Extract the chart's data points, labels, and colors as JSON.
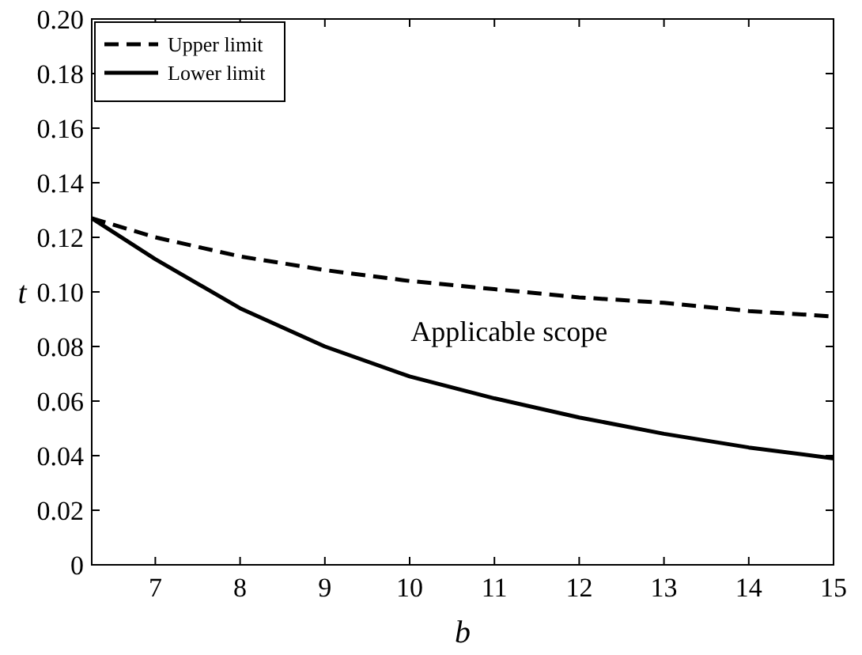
{
  "chart_data": {
    "type": "line",
    "xlabel": "b",
    "ylabel": "t",
    "xlim": [
      6.25,
      15
    ],
    "xticks": [
      7,
      8,
      9,
      10,
      11,
      12,
      13,
      14,
      15
    ],
    "ylim": [
      0,
      0.2
    ],
    "yticks": [
      {
        "value": 0,
        "label": "0"
      },
      {
        "value": 0.02,
        "label": "0.02"
      },
      {
        "value": 0.04,
        "label": "0.04"
      },
      {
        "value": 0.06,
        "label": "0.06"
      },
      {
        "value": 0.08,
        "label": "0.08"
      },
      {
        "value": 0.1,
        "label": "0.10"
      },
      {
        "value": 0.12,
        "label": "0.12"
      },
      {
        "value": 0.14,
        "label": "0.14"
      },
      {
        "value": 0.16,
        "label": "0.16"
      },
      {
        "value": 0.18,
        "label": "0.18"
      },
      {
        "value": 0.2,
        "label": "0.20"
      }
    ],
    "legend": "top left",
    "grid": false,
    "marker": "none",
    "annotations": [
      "Applicable scope"
    ],
    "x": [
      6.25,
      7,
      8,
      9,
      10,
      11,
      12,
      13,
      14,
      15
    ],
    "series": [
      {
        "name": "Upper limit",
        "color": "#000000",
        "line_style": "dashed",
        "values": [
          0.127,
          0.12,
          0.113,
          0.108,
          0.104,
          0.101,
          0.098,
          0.096,
          0.093,
          0.091
        ]
      },
      {
        "name": "Lower limit",
        "color": "#000000",
        "line_style": "solid",
        "values": [
          0.127,
          0.112,
          0.094,
          0.08,
          0.069,
          0.061,
          0.054,
          0.048,
          0.043,
          0.039
        ]
      }
    ]
  }
}
